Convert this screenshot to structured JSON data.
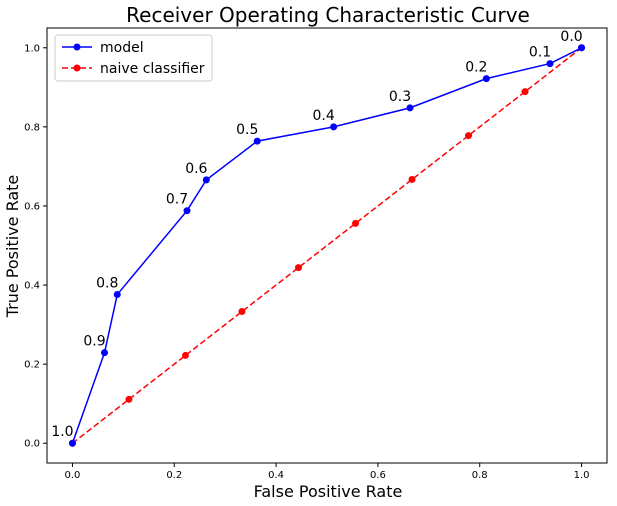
{
  "chart_data": {
    "type": "line",
    "title": "Receiver Operating Characteristic Curve",
    "xlabel": "False Positive Rate",
    "ylabel": "True Positive Rate",
    "xlim": [
      -0.05,
      1.05
    ],
    "ylim": [
      -0.05,
      1.05
    ],
    "xticks": [
      "0.0",
      "0.2",
      "0.4",
      "0.6",
      "0.8",
      "1.0"
    ],
    "yticks": [
      "0.0",
      "0.2",
      "0.4",
      "0.6",
      "0.8",
      "1.0"
    ],
    "grid": false,
    "legend_position": "top-left",
    "series": [
      {
        "name": "model",
        "color": "#0000ff",
        "style": "solid",
        "marker": "circle",
        "x": [
          0.0,
          0.063,
          0.088,
          0.225,
          0.263,
          0.363,
          0.513,
          0.663,
          0.813,
          0.938,
          1.0
        ],
        "y": [
          0.0,
          0.229,
          0.376,
          0.588,
          0.666,
          0.764,
          0.8,
          0.848,
          0.922,
          0.96,
          1.0
        ],
        "labels": [
          "1.0",
          "0.9",
          "0.8",
          "0.7",
          "0.6",
          "0.5",
          "0.4",
          "0.3",
          "0.2",
          "0.1",
          "0.0"
        ]
      },
      {
        "name": "naive classifier",
        "color": "#ff0000",
        "style": "dashed",
        "marker": "circle",
        "x": [
          0.0,
          0.111,
          0.222,
          0.333,
          0.444,
          0.556,
          0.667,
          0.778,
          0.889,
          1.0
        ],
        "y": [
          0.0,
          0.111,
          0.222,
          0.333,
          0.444,
          0.556,
          0.667,
          0.778,
          0.889,
          1.0
        ]
      }
    ]
  }
}
